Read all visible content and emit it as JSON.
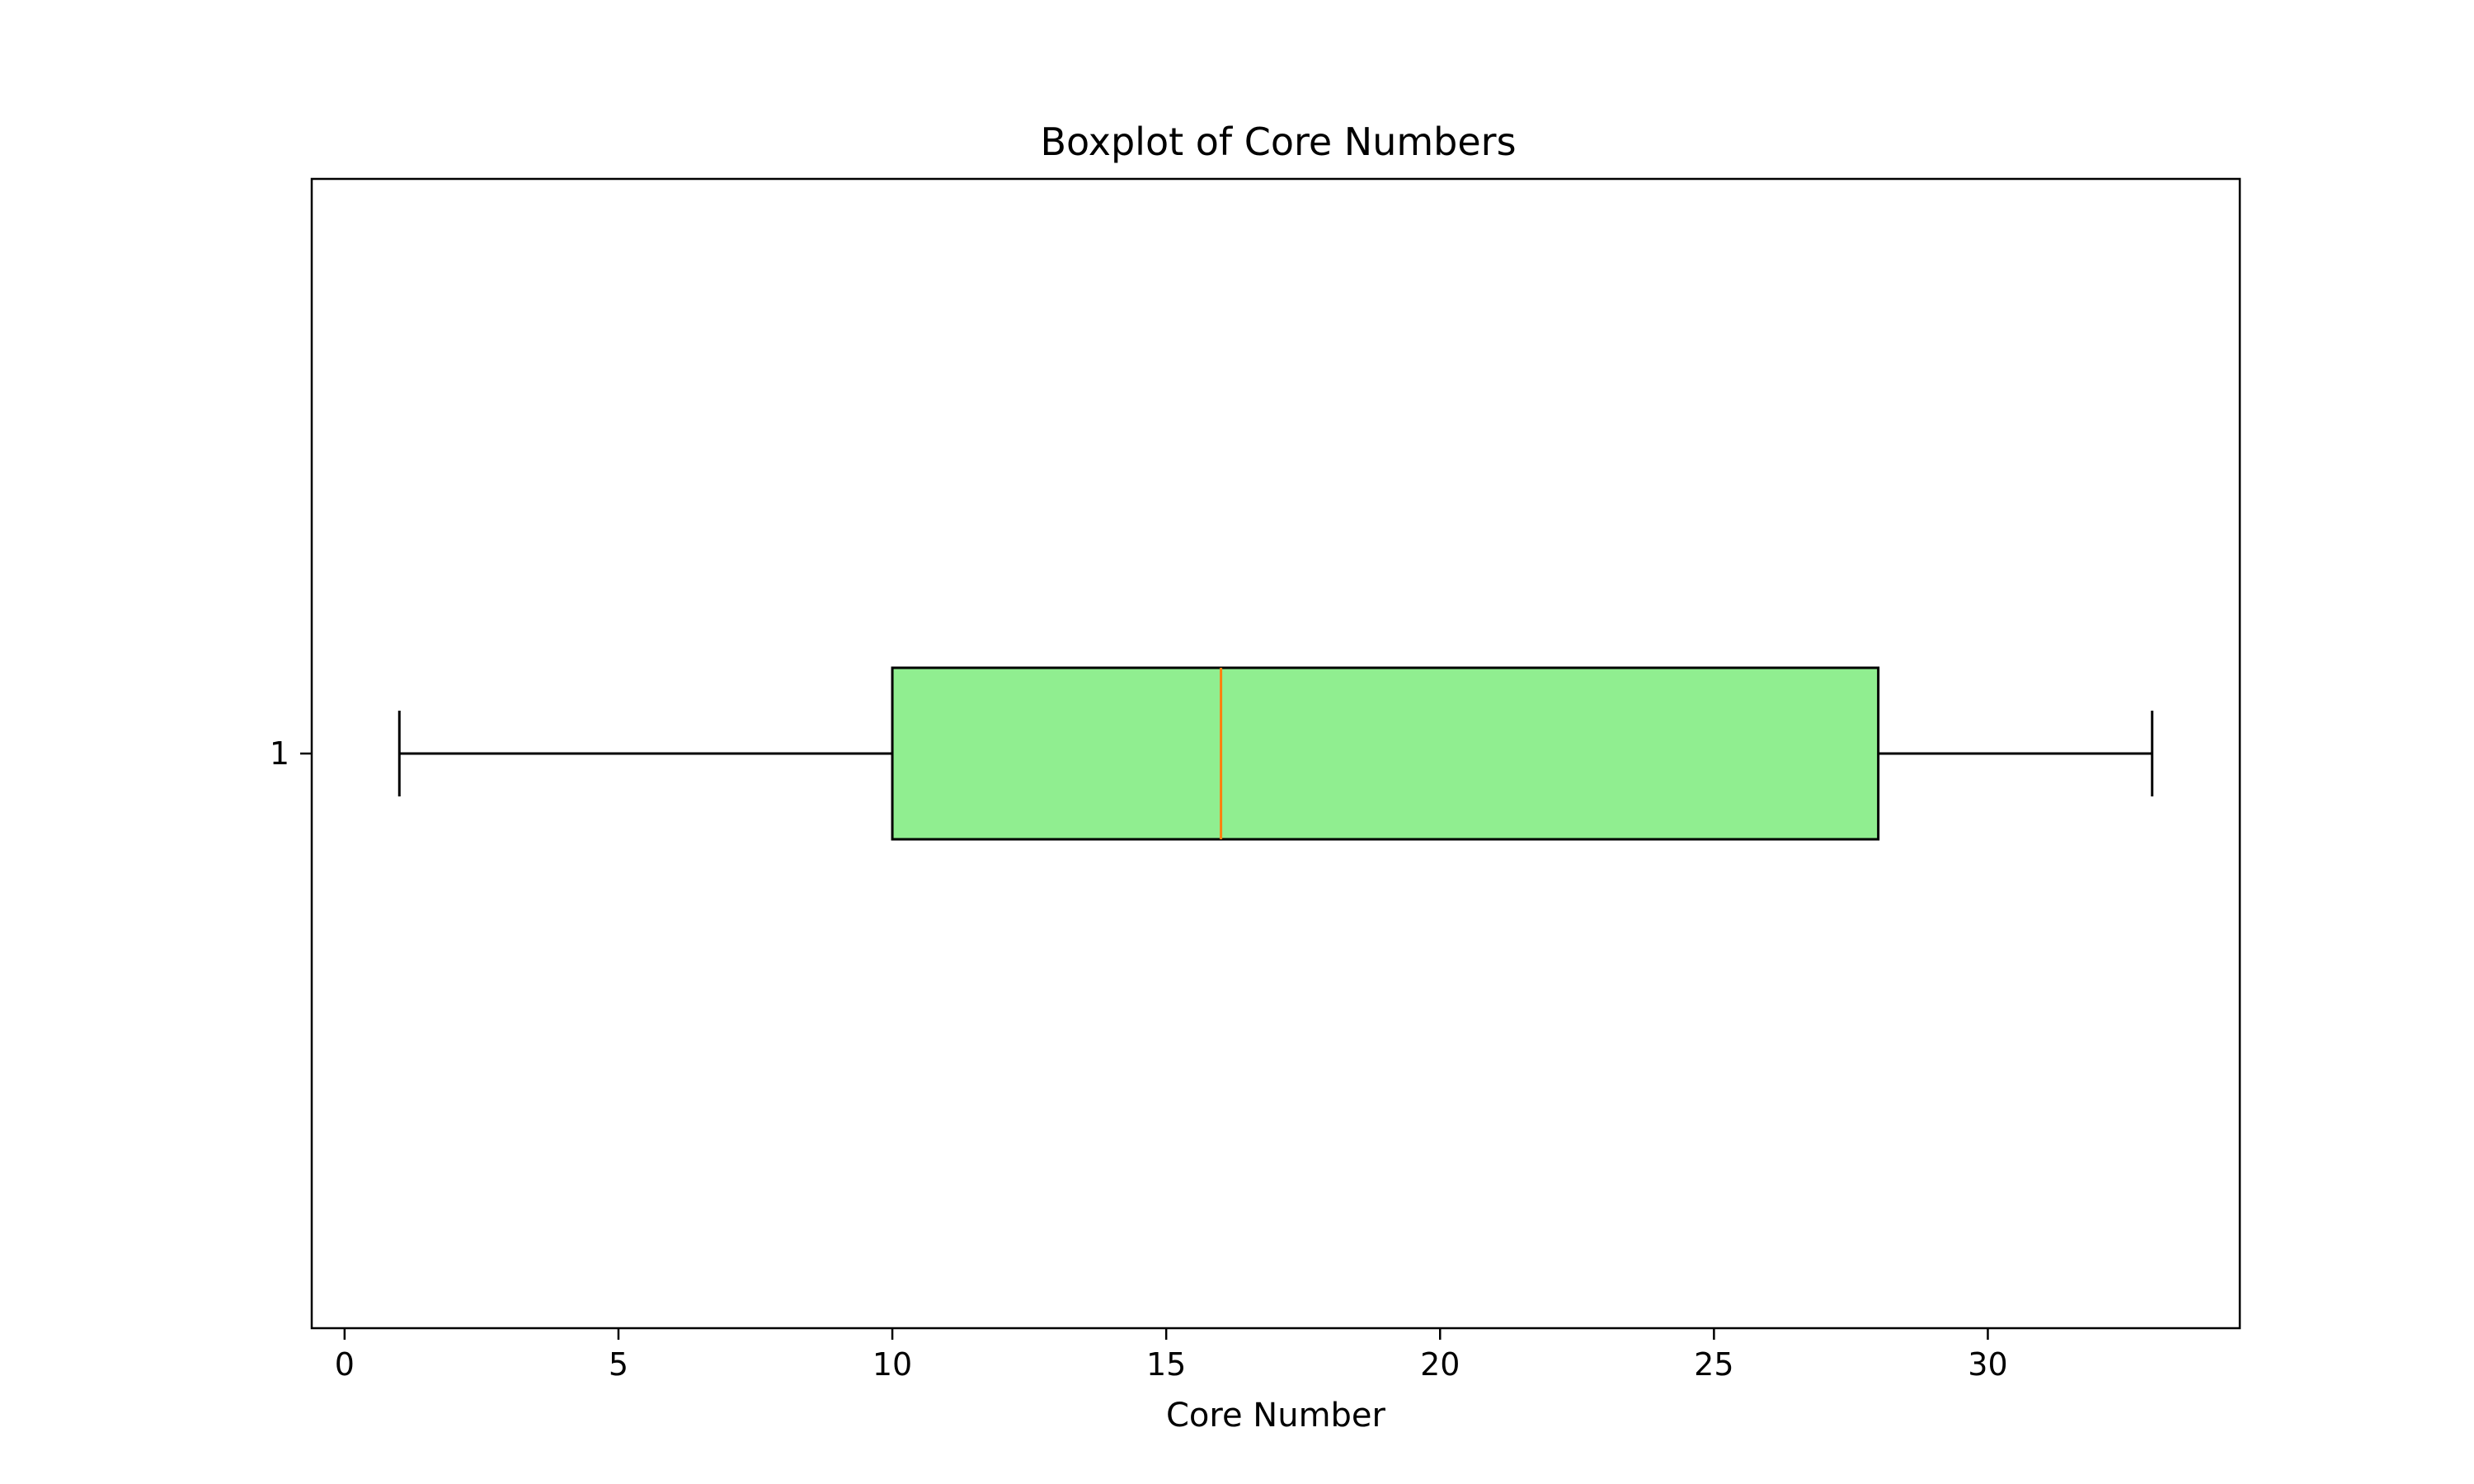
{
  "chart_data": {
    "type": "boxplot",
    "orientation": "horizontal",
    "title": "Boxplot of Core Numbers",
    "xlabel": "Core Number",
    "ylabel": "",
    "xlim": [
      -0.6,
      34.6
    ],
    "xticks": [
      0,
      5,
      10,
      15,
      20,
      25,
      30
    ],
    "xtick_labels": [
      "0",
      "5",
      "10",
      "15",
      "20",
      "25",
      "30"
    ],
    "categories": [
      "1"
    ],
    "boxes": [
      {
        "category": "1",
        "whisker_low": 1,
        "q1": 10,
        "median": 16,
        "q3": 28,
        "whisker_high": 33
      }
    ],
    "grid": false,
    "colors": {
      "box_fill": "#90ee90",
      "median": "#ff7f0e",
      "stroke": "#000000"
    }
  }
}
